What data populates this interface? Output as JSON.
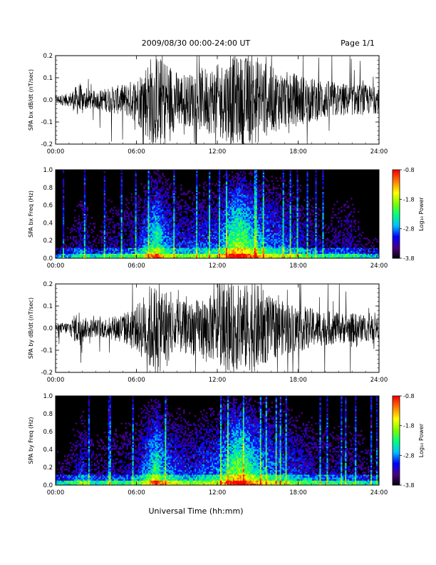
{
  "header": {
    "title": "2009/08/30  00:00-24:00 UT",
    "page": "Page 1/1"
  },
  "x_axis": {
    "label": "Universal Time (hh:mm)",
    "ticks": [
      "00:00",
      "06:00",
      "12:00",
      "18:00",
      "24:00"
    ],
    "range_hours": [
      0,
      24
    ]
  },
  "colors": {
    "background": "#ffffff",
    "trace": "#000000",
    "spectrogram_bg": "#000000"
  },
  "colorbar": {
    "label": "Log₁₀ Power",
    "ticks": [
      "-0.8",
      "-1.8",
      "-2.8",
      "-3.8"
    ],
    "range": [
      -3.8,
      -0.8
    ],
    "colormap": [
      "#000000",
      "#4b0082",
      "#0000ff",
      "#00bfff",
      "#00ff7f",
      "#7fff00",
      "#ffff00",
      "#ff7f00",
      "#ff0000"
    ]
  },
  "chart_data": [
    {
      "type": "line",
      "panel": "bx_timeseries",
      "ylabel": "SPA bx dB/dt (nT/sec)",
      "ylim": [
        -0.2,
        0.2
      ],
      "yticks": [
        "0.2",
        "0.1",
        "0.0",
        "-0.1",
        "-0.2"
      ],
      "activity": {
        "hours": [
          0,
          1,
          1.8,
          2,
          3,
          4,
          5,
          6,
          7,
          7.5,
          8,
          9,
          10,
          11,
          12,
          13,
          14,
          15,
          16,
          17,
          18,
          19,
          20,
          21,
          22,
          23,
          24
        ],
        "amplitude": [
          0.02,
          0.03,
          0.08,
          0.05,
          0.04,
          0.06,
          0.07,
          0.1,
          0.2,
          0.2,
          0.2,
          0.13,
          0.12,
          0.15,
          0.16,
          0.2,
          0.2,
          0.2,
          0.15,
          0.13,
          0.12,
          0.1,
          0.09,
          0.08,
          0.07,
          0.07,
          0.06
        ]
      }
    },
    {
      "type": "heatmap",
      "panel": "bx_spectrogram",
      "ylabel": "SPA bx Freq (Hz)",
      "ylim": [
        0,
        1.0
      ],
      "yticks": [
        "1.0",
        "0.8",
        "0.6",
        "0.4",
        "0.2",
        "0.0"
      ],
      "activity": {
        "hours": [
          0,
          1,
          2,
          3,
          4,
          5,
          6,
          7,
          7.5,
          8,
          9,
          10,
          11,
          12,
          13,
          13.5,
          14,
          15,
          16,
          17,
          18,
          19,
          20,
          21,
          22,
          23,
          24
        ],
        "intensity": [
          0.15,
          0.2,
          0.35,
          0.2,
          0.3,
          0.3,
          0.35,
          0.6,
          0.75,
          0.55,
          0.4,
          0.4,
          0.45,
          0.45,
          0.75,
          0.85,
          0.8,
          0.6,
          0.5,
          0.45,
          0.4,
          0.3,
          0.25,
          0.3,
          0.3,
          0.2,
          0.2
        ]
      }
    },
    {
      "type": "line",
      "panel": "by_timeseries",
      "ylabel": "SPA by dB/dt (nT/sec)",
      "ylim": [
        -0.2,
        0.2
      ],
      "yticks": [
        "0.2",
        "0.1",
        "0.0",
        "-0.1",
        "-0.2"
      ],
      "activity": {
        "hours": [
          0,
          1,
          1.8,
          2,
          3,
          4,
          5,
          6,
          7,
          7.5,
          8,
          9,
          10,
          11,
          12,
          13,
          14,
          15,
          16,
          17,
          18,
          19,
          20,
          21,
          22,
          23,
          24
        ],
        "amplitude": [
          0.02,
          0.03,
          0.09,
          0.05,
          0.04,
          0.05,
          0.07,
          0.1,
          0.2,
          0.2,
          0.2,
          0.12,
          0.12,
          0.14,
          0.16,
          0.2,
          0.2,
          0.2,
          0.14,
          0.12,
          0.11,
          0.09,
          0.08,
          0.07,
          0.07,
          0.06,
          0.05
        ]
      }
    },
    {
      "type": "heatmap",
      "panel": "by_spectrogram",
      "ylabel": "SPA by Freq (Hz)",
      "ylim": [
        0,
        1.0
      ],
      "yticks": [
        "1.0",
        "0.8",
        "0.6",
        "0.4",
        "0.2",
        "0.0"
      ],
      "activity": {
        "hours": [
          0,
          1,
          2,
          3,
          4,
          5,
          6,
          7,
          7.5,
          8,
          9,
          10,
          11,
          12,
          13,
          13.5,
          14,
          15,
          16,
          17,
          18,
          19,
          20,
          21,
          22,
          23,
          24
        ],
        "intensity": [
          0.2,
          0.25,
          0.4,
          0.25,
          0.3,
          0.3,
          0.35,
          0.6,
          0.75,
          0.55,
          0.45,
          0.4,
          0.45,
          0.5,
          0.75,
          0.85,
          0.8,
          0.6,
          0.5,
          0.45,
          0.4,
          0.35,
          0.3,
          0.3,
          0.3,
          0.25,
          0.2
        ]
      }
    }
  ]
}
